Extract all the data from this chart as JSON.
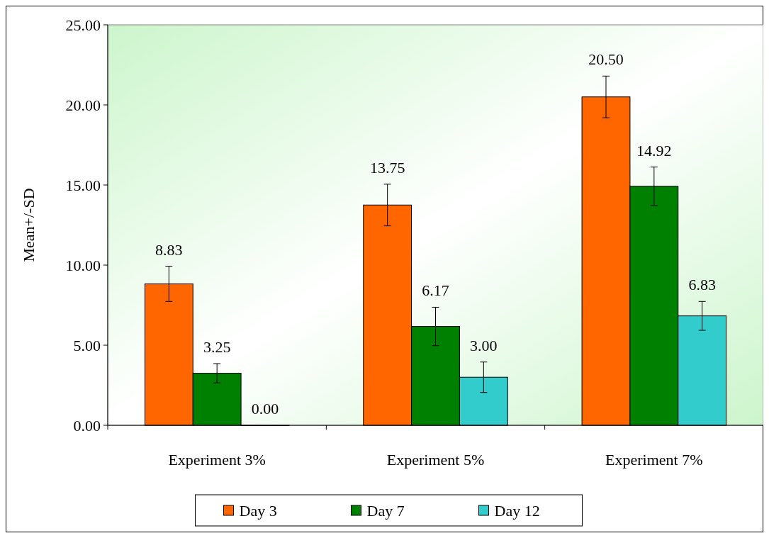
{
  "chart_data": {
    "type": "bar",
    "ylabel": "Mean+/-SD",
    "categories": [
      "Experiment 3%",
      "Experiment 5%",
      "Experiment 7%"
    ],
    "series": [
      {
        "name": "Day 3",
        "color": "#ff6600",
        "values": [
          8.83,
          13.75,
          20.5
        ],
        "value_labels": [
          "8.83",
          "13.75",
          "20.50"
        ],
        "errors": [
          1.1,
          1.3,
          1.3
        ]
      },
      {
        "name": "Day 7",
        "color": "#008000",
        "values": [
          3.25,
          6.17,
          14.92
        ],
        "value_labels": [
          "3.25",
          "6.17",
          "14.92"
        ],
        "errors": [
          0.6,
          1.2,
          1.2
        ]
      },
      {
        "name": "Day 12",
        "color": "#33cccc",
        "values": [
          0,
          3.0,
          6.83
        ],
        "value_labels": [
          "0.00",
          "3.00",
          "6.83"
        ],
        "errors": [
          null,
          0.95,
          0.9
        ]
      }
    ],
    "ylim": [
      0,
      25
    ],
    "yticks": [
      {
        "value": 0,
        "label": "0.00"
      },
      {
        "value": 5,
        "label": "5.00"
      },
      {
        "value": 10,
        "label": "10.00"
      },
      {
        "value": 15,
        "label": "15.00"
      },
      {
        "value": 20,
        "label": "20.00"
      },
      {
        "value": 25,
        "label": "25.00"
      }
    ],
    "legend": "bottom",
    "grid": false
  }
}
